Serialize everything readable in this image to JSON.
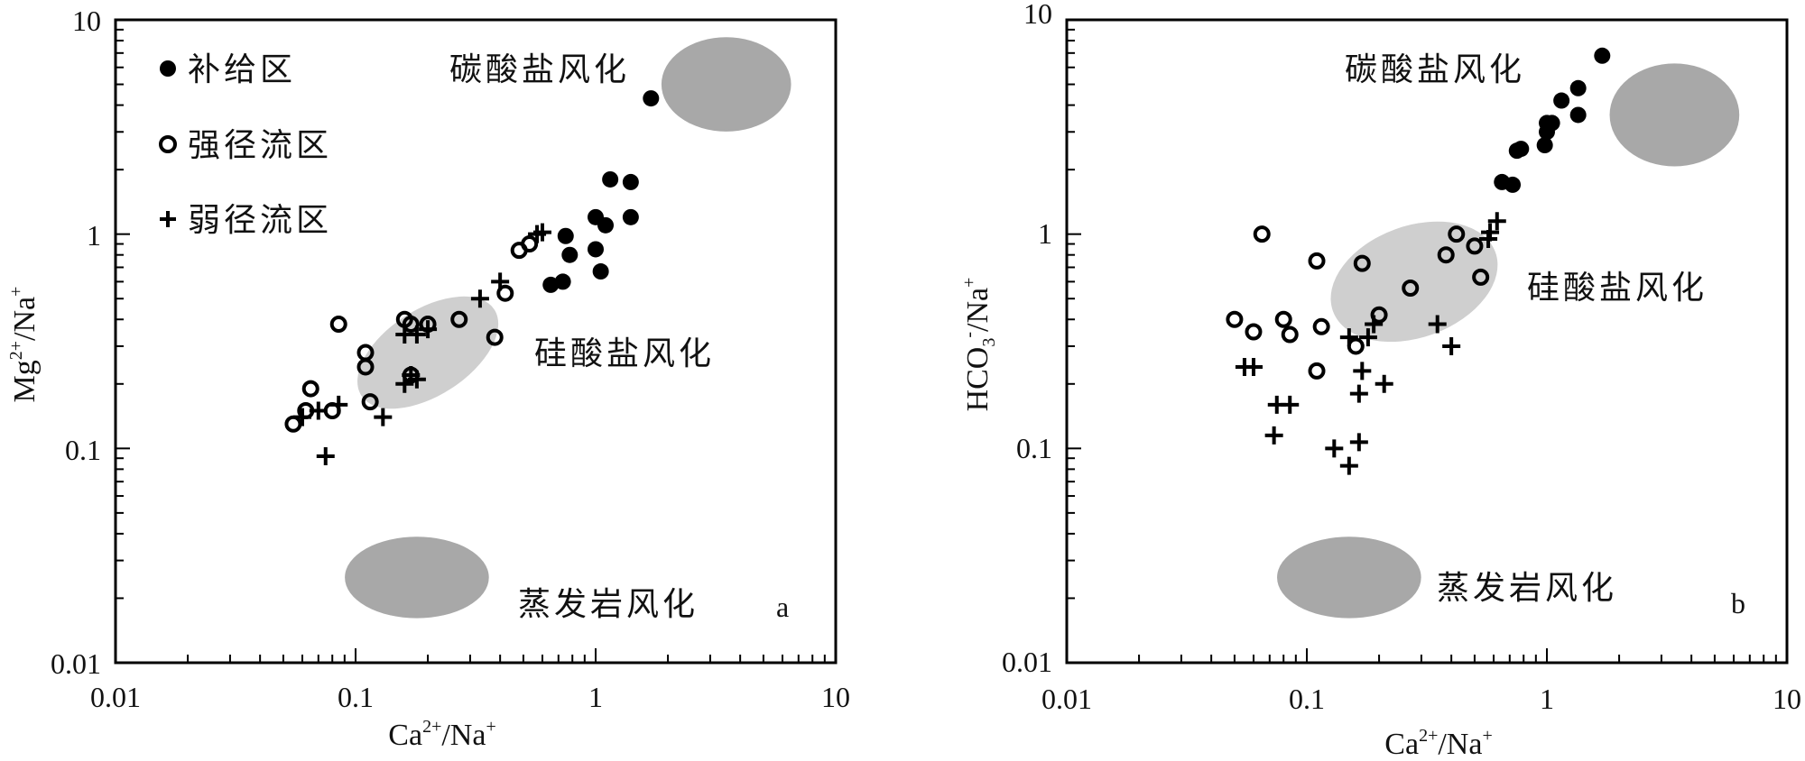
{
  "chart_data": [
    {
      "panel": "a",
      "type": "scatter",
      "xlabel": "Ca2+/Na+",
      "ylabel": "Mg2+/Na+",
      "xscale": "log",
      "yscale": "log",
      "xlim": [
        0.01,
        10
      ],
      "ylim": [
        0.01,
        10
      ],
      "xticks": [
        "0.01",
        "0.1",
        "1",
        "10"
      ],
      "yticks": [
        "0.01",
        "0.1",
        "1",
        "10"
      ],
      "legend_position": "top-left",
      "legend": [
        {
          "marker": "filled-circle",
          "label": "补给区"
        },
        {
          "marker": "open-circle",
          "label": "强径流区"
        },
        {
          "marker": "plus",
          "label": "弱径流区"
        }
      ],
      "regions": [
        {
          "label": "碳酸盐风化",
          "color": "#a8a8a8",
          "center": [
            3.5,
            5.0
          ],
          "rx_decades": 0.27,
          "ry_decades": 0.22
        },
        {
          "label": "硅酸盐风化",
          "color": "#cfcfcf",
          "center": [
            0.2,
            0.28
          ],
          "rx_decades": 0.33,
          "ry_decades": 0.2,
          "rotate": -33
        },
        {
          "label": "蒸发岩风化",
          "color": "#a8a8a8",
          "center": [
            0.18,
            0.025
          ],
          "rx_decades": 0.3,
          "ry_decades": 0.19
        }
      ],
      "series": [
        {
          "name": "补给区",
          "marker": "filled-circle",
          "points": [
            [
              1.7,
              4.3
            ],
            [
              1.15,
              1.8
            ],
            [
              1.4,
              1.75
            ],
            [
              1.0,
              1.2
            ],
            [
              1.4,
              1.2
            ],
            [
              1.1,
              1.1
            ],
            [
              0.75,
              0.98
            ],
            [
              0.78,
              0.8
            ],
            [
              1.0,
              0.85
            ],
            [
              1.05,
              0.67
            ],
            [
              0.65,
              0.58
            ],
            [
              0.73,
              0.6
            ]
          ]
        },
        {
          "name": "强径流区",
          "marker": "open-circle",
          "points": [
            [
              0.085,
              0.38
            ],
            [
              0.11,
              0.28
            ],
            [
              0.11,
              0.24
            ],
            [
              0.115,
              0.165
            ],
            [
              0.065,
              0.19
            ],
            [
              0.062,
              0.15
            ],
            [
              0.055,
              0.13
            ],
            [
              0.08,
              0.15
            ],
            [
              0.16,
              0.4
            ],
            [
              0.17,
              0.38
            ],
            [
              0.2,
              0.38
            ],
            [
              0.27,
              0.4
            ],
            [
              0.38,
              0.33
            ],
            [
              0.42,
              0.53
            ],
            [
              0.48,
              0.84
            ],
            [
              0.53,
              0.9
            ],
            [
              0.17,
              0.22
            ]
          ]
        },
        {
          "name": "弱径流区",
          "marker": "plus",
          "points": [
            [
              0.06,
              0.14
            ],
            [
              0.07,
              0.15
            ],
            [
              0.085,
              0.16
            ],
            [
              0.075,
              0.092
            ],
            [
              0.13,
              0.14
            ],
            [
              0.16,
              0.34
            ],
            [
              0.18,
              0.34
            ],
            [
              0.2,
              0.36
            ],
            [
              0.16,
              0.2
            ],
            [
              0.18,
              0.21
            ],
            [
              0.17,
              0.22
            ],
            [
              0.33,
              0.5
            ],
            [
              0.4,
              0.6
            ],
            [
              0.57,
              1.0
            ],
            [
              0.6,
              1.02
            ]
          ]
        }
      ],
      "annotations": [
        "碳酸盐风化",
        "硅酸盐风化",
        "蒸发岩风化",
        "a"
      ]
    },
    {
      "panel": "b",
      "type": "scatter",
      "xlabel": "Ca2+/Na+",
      "ylabel": "HCO3-/Na+",
      "xscale": "log",
      "yscale": "log",
      "xlim": [
        0.01,
        10
      ],
      "ylim": [
        0.01,
        10
      ],
      "xticks": [
        "0.01",
        "0.1",
        "1",
        "10"
      ],
      "yticks": [
        "0.01",
        "0.1",
        "1",
        "10"
      ],
      "regions": [
        {
          "label": "碳酸盐风化",
          "color": "#a8a8a8",
          "center": [
            3.4,
            3.6
          ],
          "rx_decades": 0.27,
          "ry_decades": 0.24
        },
        {
          "label": "硅酸盐风化",
          "color": "#cfcfcf",
          "center": [
            0.28,
            0.6
          ],
          "rx_decades": 0.36,
          "ry_decades": 0.26,
          "rotate": -20
        },
        {
          "label": "蒸发岩风化",
          "color": "#a8a8a8",
          "center": [
            0.15,
            0.025
          ],
          "rx_decades": 0.3,
          "ry_decades": 0.19
        }
      ],
      "series": [
        {
          "name": "补给区",
          "marker": "filled-circle",
          "points": [
            [
              1.7,
              6.8
            ],
            [
              1.35,
              4.8
            ],
            [
              1.15,
              4.2
            ],
            [
              1.35,
              3.6
            ],
            [
              1.0,
              3.3
            ],
            [
              1.05,
              3.3
            ],
            [
              1.0,
              3.0
            ],
            [
              0.98,
              2.6
            ],
            [
              0.75,
              2.45
            ],
            [
              0.78,
              2.5
            ],
            [
              0.65,
              1.75
            ],
            [
              0.72,
              1.7
            ]
          ]
        },
        {
          "name": "强径流区",
          "marker": "open-circle",
          "points": [
            [
              0.065,
              1.0
            ],
            [
              0.11,
              0.75
            ],
            [
              0.17,
              0.73
            ],
            [
              0.05,
              0.4
            ],
            [
              0.06,
              0.35
            ],
            [
              0.08,
              0.4
            ],
            [
              0.085,
              0.34
            ],
            [
              0.115,
              0.37
            ],
            [
              0.11,
              0.23
            ],
            [
              0.16,
              0.3
            ],
            [
              0.2,
              0.42
            ],
            [
              0.27,
              0.56
            ],
            [
              0.38,
              0.8
            ],
            [
              0.42,
              1.0
            ],
            [
              0.5,
              0.88
            ],
            [
              0.53,
              0.63
            ]
          ]
        },
        {
          "name": "弱径流区",
          "marker": "plus",
          "points": [
            [
              0.055,
              0.24
            ],
            [
              0.06,
              0.24
            ],
            [
              0.075,
              0.16
            ],
            [
              0.085,
              0.16
            ],
            [
              0.073,
              0.115
            ],
            [
              0.13,
              0.1
            ],
            [
              0.15,
              0.083
            ],
            [
              0.165,
              0.107
            ],
            [
              0.165,
              0.18
            ],
            [
              0.17,
              0.23
            ],
            [
              0.21,
              0.2
            ],
            [
              0.15,
              0.33
            ],
            [
              0.18,
              0.33
            ],
            [
              0.19,
              0.38
            ],
            [
              0.35,
              0.38
            ],
            [
              0.4,
              0.3
            ],
            [
              0.58,
              1.02
            ],
            [
              0.62,
              1.15
            ],
            [
              0.57,
              0.95
            ]
          ]
        }
      ],
      "annotations": [
        "碳酸盐风化",
        "硅酸盐风化",
        "蒸发岩风化",
        "b"
      ]
    }
  ]
}
